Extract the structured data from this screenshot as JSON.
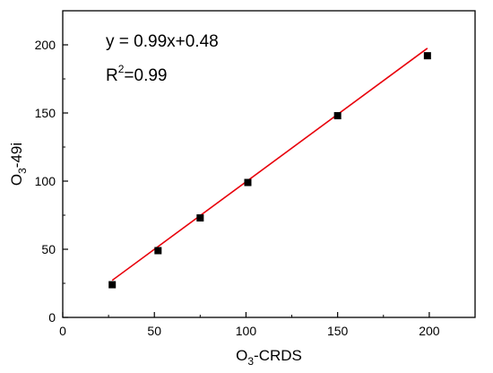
{
  "chart_data": {
    "type": "scatter",
    "title": "",
    "xlabel": {
      "base": "O",
      "sub": "3",
      "rest": "-CRDS"
    },
    "ylabel": {
      "base": "O",
      "sub": "3",
      "rest": "-49i"
    },
    "xlim": [
      0,
      225
    ],
    "ylim": [
      0,
      225
    ],
    "xticks": [
      0,
      50,
      100,
      150,
      200
    ],
    "yticks": [
      0,
      50,
      100,
      150,
      200
    ],
    "x_tick_labels": [
      "0",
      "50",
      "100",
      "150",
      "200"
    ],
    "y_tick_labels": [
      "0",
      "50",
      "100",
      "150",
      "200"
    ],
    "grid": false,
    "series": [
      {
        "points": [
          {
            "x": 27,
            "y": 24
          },
          {
            "x": 52,
            "y": 49
          },
          {
            "x": 75,
            "y": 73
          },
          {
            "x": 101,
            "y": 99
          },
          {
            "x": 150,
            "y": 148
          },
          {
            "x": 199,
            "y": 192
          }
        ],
        "marker_color": "#000000"
      }
    ],
    "fit_line": {
      "slope": 0.99,
      "intercept": 0.48,
      "x_range": [
        27,
        199
      ],
      "color": "#e8000b"
    },
    "annotations": {
      "equation": "y = 0.99x+0.48",
      "r2_base": "R",
      "r2_sup": "2",
      "r2_rest": "=0.99"
    }
  }
}
